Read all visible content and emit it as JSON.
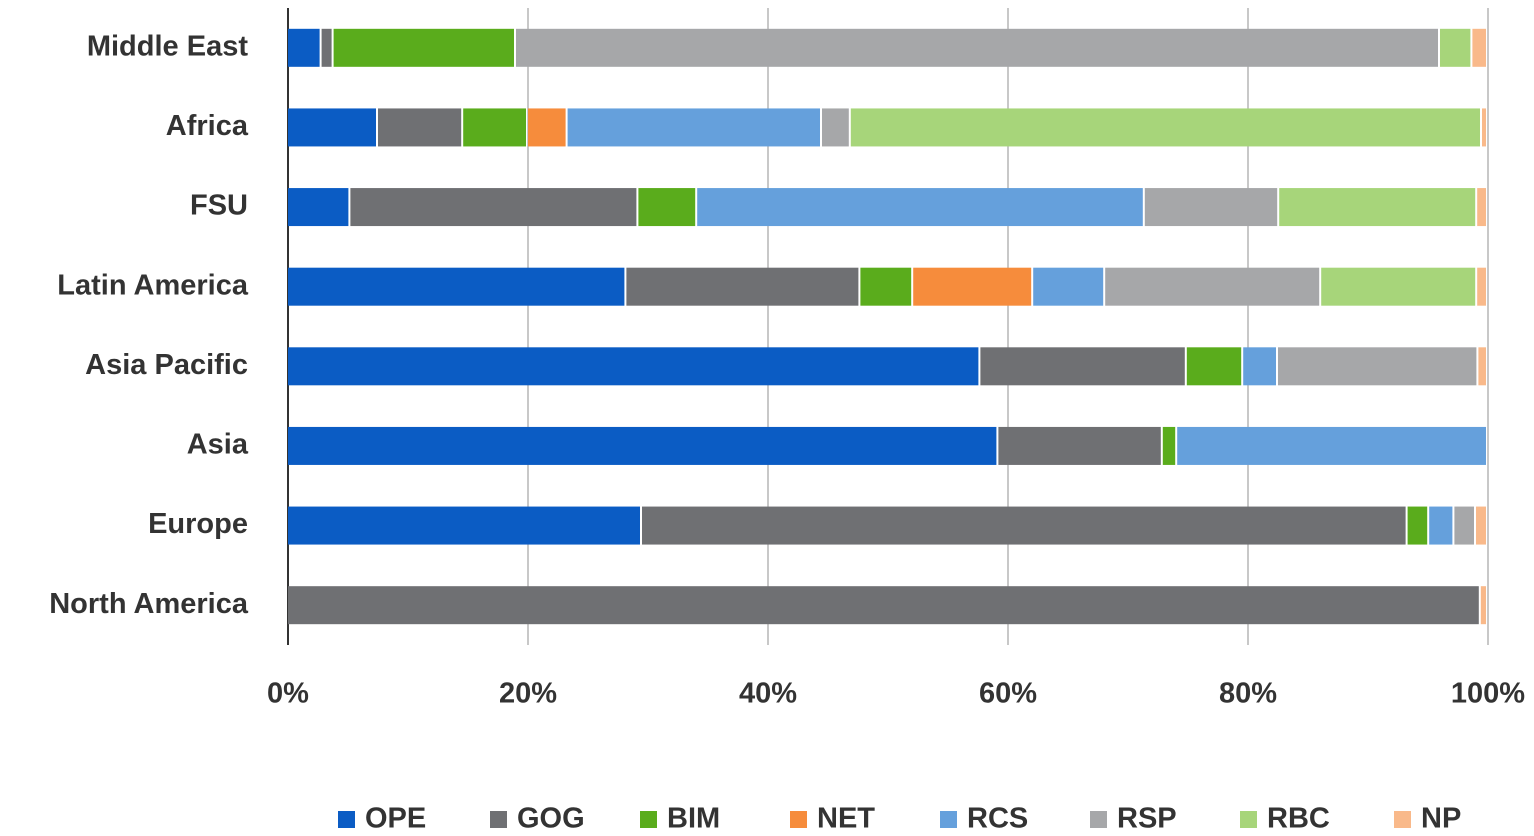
{
  "chart_data": {
    "type": "stacked_bar_horizontal",
    "categories": [
      "Middle East",
      "Africa",
      "FSU",
      "Latin America",
      "Asia Pacific",
      "Asia",
      "Europe",
      "North America"
    ],
    "series": [
      {
        "name": "OPE",
        "color": "#0b5cc4",
        "values": [
          2.8,
          7.5,
          5.2,
          28.2,
          57.7,
          59.2,
          29.5,
          0
        ]
      },
      {
        "name": "GOG",
        "color": "#6f7073",
        "values": [
          1.0,
          7.1,
          24.0,
          19.5,
          17.2,
          13.7,
          63.8,
          99.4
        ]
      },
      {
        "name": "BIM",
        "color": "#5aac1c",
        "values": [
          15.2,
          5.4,
          4.9,
          4.4,
          4.7,
          1.2,
          1.8,
          0
        ]
      },
      {
        "name": "NET",
        "color": "#f68c3c",
        "values": [
          0,
          3.3,
          0,
          10.0,
          0,
          0,
          0,
          0
        ]
      },
      {
        "name": "RCS",
        "color": "#65a0dc",
        "values": [
          0,
          21.2,
          37.3,
          6.0,
          2.9,
          25.9,
          2.1,
          0
        ]
      },
      {
        "name": "RSP",
        "color": "#a6a7a9",
        "values": [
          77.0,
          2.4,
          11.2,
          18.0,
          16.7,
          0,
          1.8,
          0
        ]
      },
      {
        "name": "RBC",
        "color": "#a7d57a",
        "values": [
          2.7,
          52.6,
          16.5,
          13.0,
          0,
          0,
          0,
          0
        ]
      },
      {
        "name": "NP",
        "color": "#f9b98a",
        "values": [
          1.3,
          0.5,
          0.9,
          0.9,
          0.8,
          0,
          1.0,
          0.6
        ]
      }
    ],
    "xlim": [
      0,
      100
    ],
    "xticks": [
      {
        "value": 0,
        "label": "0%"
      },
      {
        "value": 20,
        "label": "20%"
      },
      {
        "value": 40,
        "label": "40%"
      },
      {
        "value": 60,
        "label": "60%"
      },
      {
        "value": 80,
        "label": "80%"
      },
      {
        "value": 100,
        "label": "100%"
      }
    ],
    "grid": true,
    "legend": "bottom"
  }
}
